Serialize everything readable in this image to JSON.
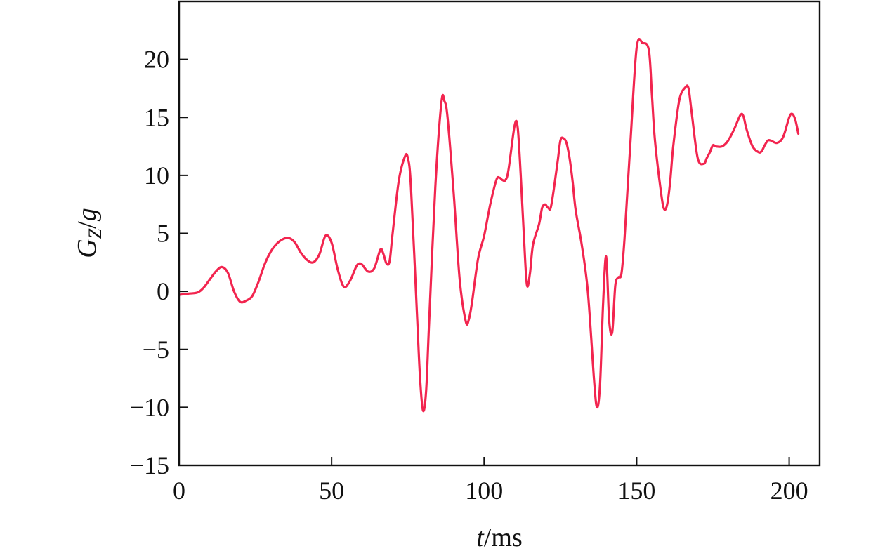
{
  "chart_data": {
    "type": "line",
    "title": "",
    "xlabel": {
      "var": "t",
      "unit": "/ms"
    },
    "ylabel": {
      "var": "G",
      "sub": "Z",
      "tail": "/",
      "tail_var": "g"
    },
    "xlim": [
      0,
      210
    ],
    "ylim": [
      -15,
      25
    ],
    "xticks": [
      {
        "value": 0,
        "label": "0"
      },
      {
        "value": 50,
        "label": "50"
      },
      {
        "value": 100,
        "label": "100"
      },
      {
        "value": 150,
        "label": "150"
      },
      {
        "value": 200,
        "label": "200"
      }
    ],
    "yticks": [
      {
        "value": -15,
        "label": "−15"
      },
      {
        "value": -10,
        "label": "−10"
      },
      {
        "value": -5,
        "label": "−5"
      },
      {
        "value": 0,
        "label": "0"
      },
      {
        "value": 5,
        "label": "5"
      },
      {
        "value": 10,
        "label": "10"
      },
      {
        "value": 15,
        "label": "15"
      },
      {
        "value": 20,
        "label": "20"
      }
    ],
    "grid": false,
    "series": [
      {
        "color": "#f2254f",
        "x": [
          0,
          3,
          6,
          8,
          10,
          12,
          14,
          16,
          18,
          20,
          22,
          24,
          26,
          28,
          30,
          32,
          34,
          36,
          38,
          40,
          42,
          44,
          46,
          48,
          50,
          52,
          54,
          56,
          58,
          59,
          60,
          62,
          64,
          66,
          67,
          68,
          69,
          70,
          72,
          74,
          75,
          76,
          78,
          79,
          80,
          81,
          82,
          84,
          86,
          87,
          88,
          90,
          92,
          94,
          95,
          96,
          98,
          100,
          102,
          104,
          105,
          106,
          107,
          108,
          110,
          111,
          112,
          113,
          114,
          115,
          116,
          118,
          119,
          120,
          121,
          122,
          124,
          125,
          126,
          127,
          128,
          129,
          130,
          132,
          134,
          136,
          137,
          138,
          139,
          140,
          141,
          142,
          143,
          144,
          145,
          146,
          148,
          150,
          152,
          154,
          155,
          156,
          158,
          159,
          160,
          161,
          162,
          164,
          166,
          167,
          168,
          170,
          172,
          173,
          174,
          175,
          176,
          178,
          180,
          182,
          184,
          185,
          186,
          188,
          190,
          191,
          192,
          193,
          194,
          196,
          198,
          200,
          201,
          202,
          203
        ],
        "values": [
          -0.3,
          -0.2,
          -0.1,
          0.3,
          1.0,
          1.7,
          2.1,
          1.6,
          0.0,
          -0.9,
          -0.8,
          -0.4,
          0.8,
          2.3,
          3.4,
          4.1,
          4.5,
          4.6,
          4.2,
          3.3,
          2.7,
          2.5,
          3.2,
          4.8,
          4.2,
          1.9,
          0.4,
          0.9,
          2.1,
          2.4,
          2.3,
          1.7,
          2.0,
          3.6,
          3.2,
          2.4,
          2.6,
          5.0,
          9.5,
          11.6,
          11.5,
          9.0,
          -2.0,
          -7.5,
          -10.3,
          -8.5,
          -2.5,
          9.0,
          16.3,
          16.4,
          15.0,
          8.5,
          1.0,
          -2.6,
          -2.4,
          -1.0,
          2.8,
          4.8,
          7.5,
          9.6,
          9.8,
          9.6,
          9.6,
          10.5,
          14.3,
          14.1,
          10.0,
          5.0,
          0.6,
          1.5,
          4.0,
          5.8,
          7.2,
          7.5,
          7.2,
          7.4,
          11.0,
          13.0,
          13.2,
          12.8,
          11.5,
          9.5,
          7.0,
          4.0,
          0.0,
          -7.5,
          -10.0,
          -8.0,
          -1.0,
          3.0,
          -2.5,
          -3.5,
          0.5,
          1.2,
          1.5,
          4.5,
          13.0,
          21.0,
          21.4,
          20.8,
          17.0,
          13.0,
          8.5,
          7.1,
          7.5,
          9.5,
          12.5,
          16.5,
          17.6,
          17.5,
          15.5,
          11.5,
          11.0,
          11.5,
          12.0,
          12.6,
          12.5,
          12.5,
          13.0,
          14.0,
          15.2,
          15.1,
          14.0,
          12.5,
          12.0,
          12.1,
          12.6,
          13.0,
          13.0,
          12.8,
          13.3,
          15.0,
          15.3,
          14.8,
          13.6
        ]
      }
    ]
  }
}
